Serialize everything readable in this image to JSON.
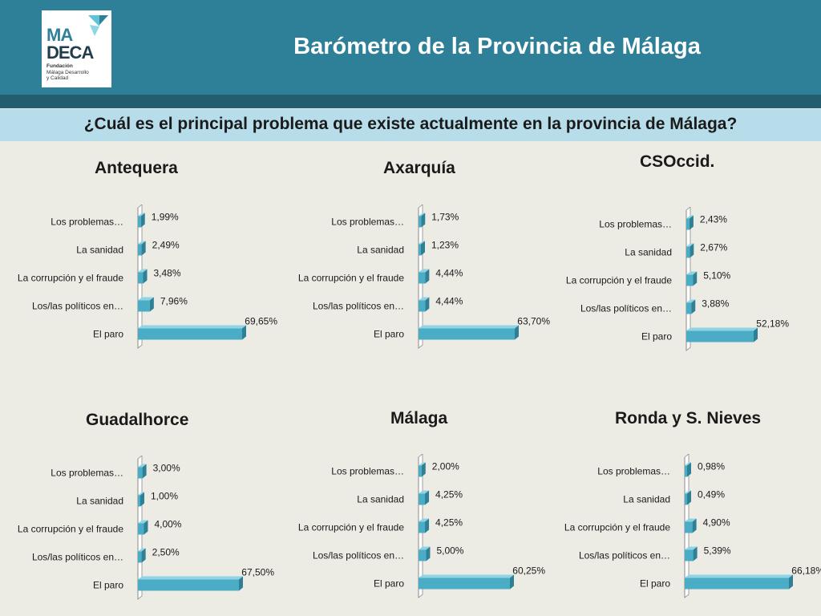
{
  "header": {
    "title": "Barómetro de la Provincia de Málaga",
    "logo": {
      "line1": "MA",
      "line2": "DECA",
      "org": "Fundación",
      "sub1": "Málaga Desarrollo",
      "sub2": "y Calidad"
    }
  },
  "question": "¿Cuál es el principal problema que existe actualmente en la provincia de Málaga?",
  "colors": {
    "header": "#2e7f98",
    "question_bg": "#b6dde9",
    "bar": "#4bacc6"
  },
  "chart_data": [
    {
      "type": "bar",
      "orientation": "horizontal",
      "title": "Antequera",
      "categories": [
        "Los problemas…",
        "La sanidad",
        "La corrupción y el fraude",
        "Los/las políticos en…",
        "El paro"
      ],
      "values": [
        1.99,
        2.49,
        3.48,
        7.96,
        69.65
      ],
      "labels": [
        "1,99%",
        "2,49%",
        "3,48%",
        "7,96%",
        "69,65%"
      ]
    },
    {
      "type": "bar",
      "orientation": "horizontal",
      "title": "Axarquía",
      "categories": [
        "Los problemas…",
        "La sanidad",
        "La corrupción y el fraude",
        "Los/las políticos en…",
        "El paro"
      ],
      "values": [
        1.73,
        1.23,
        4.44,
        4.44,
        63.7
      ],
      "labels": [
        "1,73%",
        "1,23%",
        "4,44%",
        "4,44%",
        "63,70%"
      ]
    },
    {
      "type": "bar",
      "orientation": "horizontal",
      "title": "CSOccid.",
      "categories": [
        "Los problemas…",
        "La sanidad",
        "La corrupción y el fraude",
        "Los/las políticos en…",
        "El paro"
      ],
      "values": [
        2.43,
        2.67,
        5.1,
        3.88,
        52.18
      ],
      "labels": [
        "2,43%",
        "2,67%",
        "5,10%",
        "3,88%",
        "52,18%"
      ]
    },
    {
      "type": "bar",
      "orientation": "horizontal",
      "title": "Guadalhorce",
      "categories": [
        "Los problemas…",
        "La sanidad",
        "La corrupción y el fraude",
        "Los/las políticos en…",
        "El paro"
      ],
      "values": [
        3.0,
        1.0,
        4.0,
        2.5,
        67.5
      ],
      "labels": [
        "3,00%",
        "1,00%",
        "4,00%",
        "2,50%",
        "67,50%"
      ]
    },
    {
      "type": "bar",
      "orientation": "horizontal",
      "title": "Málaga",
      "categories": [
        "Los problemas…",
        "La sanidad",
        "La corrupción y el fraude",
        "Los/las políticos en…",
        "El paro"
      ],
      "values": [
        2.0,
        4.25,
        4.25,
        5.0,
        60.25
      ],
      "labels": [
        "2,00%",
        "4,25%",
        "4,25%",
        "5,00%",
        "60,25%"
      ]
    },
    {
      "type": "bar",
      "orientation": "horizontal",
      "title": "Ronda y S. Nieves",
      "categories": [
        "Los problemas…",
        "La sanidad",
        "La corrupción y el fraude",
        "Los/las políticos en…",
        "El paro"
      ],
      "values": [
        0.98,
        0.49,
        4.9,
        5.39,
        66.18
      ],
      "labels": [
        "0,98%",
        "0,49%",
        "4,90%",
        "5,39%",
        "66,18%"
      ]
    }
  ]
}
